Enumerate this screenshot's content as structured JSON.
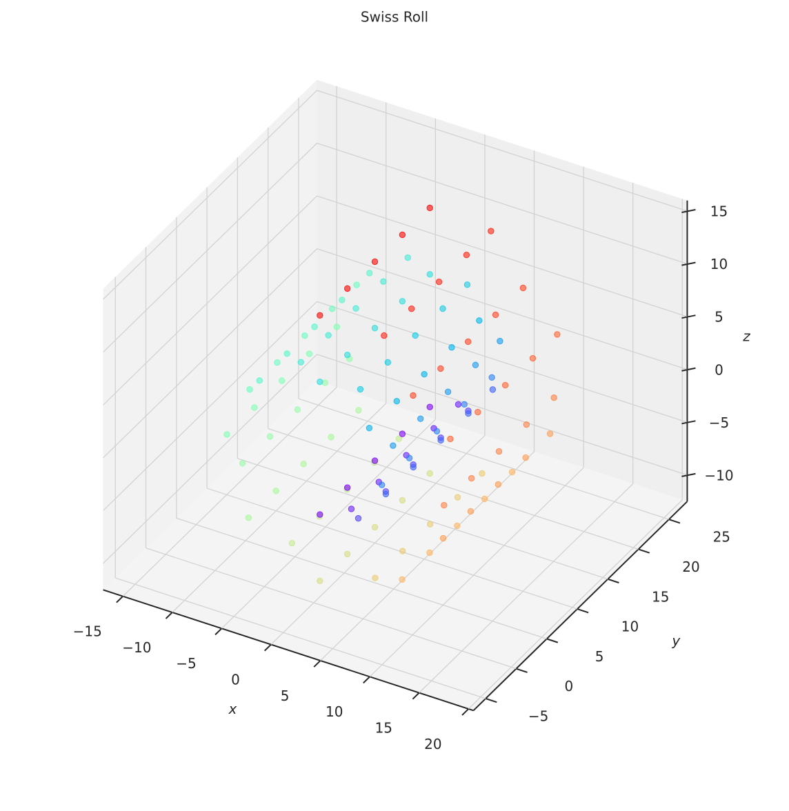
{
  "chart_data": {
    "type": "scatter3d",
    "title": "Swiss Roll",
    "xlabel": "x",
    "ylabel": "y",
    "zlabel": "z",
    "xlim": [
      -17,
      20.5
    ],
    "ylim": [
      -7,
      28
    ],
    "zlim": [
      -12.5,
      16
    ],
    "xticks": [
      {
        "value": -15,
        "label": "−15"
      },
      {
        "value": -10,
        "label": "−10"
      },
      {
        "value": -5,
        "label": "−5"
      },
      0,
      5,
      10,
      15,
      20
    ],
    "yticks": [
      {
        "value": -5,
        "label": "−5"
      },
      0,
      5,
      10,
      15,
      20,
      25
    ],
    "zticks": [
      {
        "value": -10,
        "label": "−10"
      },
      {
        "value": -5,
        "label": "−5"
      },
      0,
      5,
      10,
      15
    ],
    "grid": true,
    "series": [
      {
        "color": "#8000ff",
        "x": [
          0,
          0,
          0,
          0,
          0
        ],
        "y": [
          1,
          5.5,
          10,
          14.5,
          19
        ],
        "z": [
          -4.71,
          -4.71,
          -4.71,
          -4.71,
          -4.71
        ]
      },
      {
        "color": "#6a21fe",
        "x": [
          1.95,
          1.95,
          1.95,
          1.95,
          1.95
        ],
        "y": [
          3,
          7.5,
          12,
          16.5,
          20.5
        ],
        "z": [
          -4.72,
          -4.72,
          -4.72,
          -4.72,
          -4.72
        ]
      },
      {
        "color": "#5542fd",
        "x": [
          3.89,
          3.89,
          3.89,
          3.89,
          3.89
        ],
        "y": [
          1,
          5.5,
          10,
          14.5,
          19
        ],
        "z": [
          -3.89,
          -3.89,
          -3.89,
          -3.89,
          -3.89
        ]
      },
      {
        "color": "#4062fa",
        "x": [
          5.44,
          5.44,
          5.44,
          5.44,
          5.44
        ],
        "y": [
          3,
          7.5,
          12,
          16.5,
          20.5
        ],
        "z": [
          -2.25,
          -2.25,
          -2.25,
          -2.25,
          -2.25
        ]
      },
      {
        "color": "#2a80f6",
        "x": [
          6.28,
          6.28,
          6.28,
          6.28,
          6.28
        ],
        "y": [
          1,
          5.5,
          10,
          14.5,
          19
        ],
        "z": [
          0,
          0,
          0,
          0,
          0
        ]
      },
      {
        "color": "#159bf1",
        "x": [
          6.17,
          6.17,
          6.17,
          6.17,
          6.17
        ],
        "y": [
          3,
          7.5,
          12,
          16.5,
          20.5
        ],
        "z": [
          2.56,
          2.56,
          2.56,
          2.56,
          2.56
        ]
      },
      {
        "color": "#00b4eb",
        "x": [
          5,
          5,
          5,
          5,
          5
        ],
        "y": [
          1,
          5.5,
          10,
          14.5,
          19
        ],
        "z": [
          5,
          5,
          5,
          5,
          5
        ]
      },
      {
        "color": "#15cae5",
        "x": [
          2.86,
          2.86,
          2.86,
          2.86,
          2.86
        ],
        "y": [
          3,
          7.5,
          12,
          16.5,
          20.5
        ],
        "z": [
          6.89,
          6.89,
          6.89,
          6.89,
          6.89
        ]
      },
      {
        "color": "#2addde",
        "x": [
          0,
          0,
          0,
          0,
          0
        ],
        "y": [
          1,
          5.5,
          10,
          14.5,
          19
        ],
        "z": [
          7.85,
          7.85,
          7.85,
          7.85,
          7.85
        ]
      },
      {
        "color": "#40ebd4",
        "x": [
          -3.16,
          -3.16,
          -3.16,
          -3.16,
          -3.16
        ],
        "y": [
          3,
          7.5,
          12,
          16.5,
          20.5
        ],
        "z": [
          7.62,
          7.62,
          7.62,
          7.62,
          7.62
        ]
      },
      {
        "color": "#55f6ca",
        "x": [
          -6.11,
          -6.11,
          -6.11,
          -6.11,
          -6.11
        ],
        "y": [
          1,
          5.5,
          10,
          14.5,
          19
        ],
        "z": [
          6.11,
          6.11,
          6.11,
          6.11,
          6.11
        ]
      },
      {
        "color": "#6afcc0",
        "x": [
          -8.34,
          -8.34,
          -8.34,
          -8.34,
          -8.34
        ],
        "y": [
          3,
          7.5,
          12,
          16.5,
          20.5
        ],
        "z": [
          3.46,
          3.46,
          3.46,
          3.46,
          3.46
        ]
      },
      {
        "color": "#80ffb4",
        "x": [
          -9.42,
          -9.42,
          -9.42,
          -9.42,
          -9.42
        ],
        "y": [
          1,
          5.5,
          10,
          14.5,
          19
        ],
        "z": [
          0,
          0,
          0,
          0,
          0
        ]
      },
      {
        "color": "#95fca8",
        "x": [
          -9.07,
          -9.07,
          -9.07,
          -9.07,
          -9.07
        ],
        "y": [
          3,
          7.5,
          12,
          16.5,
          20.5
        ],
        "z": [
          -3.76,
          -3.76,
          -3.76,
          -3.76,
          -3.76
        ]
      },
      {
        "color": "#aaf69b",
        "x": [
          -7.22,
          -7.22,
          -7.22,
          -7.22,
          -7.22
        ],
        "y": [
          1,
          5.5,
          10,
          14.5,
          19
        ],
        "z": [
          -7.22,
          -7.22,
          -7.22,
          -7.22,
          -7.22
        ]
      },
      {
        "color": "#bfeb8e",
        "x": [
          -4.06,
          -4.06,
          -4.06,
          -4.06,
          -4.06
        ],
        "y": [
          3,
          7.5,
          12,
          16.5,
          20.5
        ],
        "z": [
          -9.8,
          -9.8,
          -9.8,
          -9.8,
          -9.8
        ]
      },
      {
        "color": "#d4dd80",
        "x": [
          0,
          0,
          0,
          0,
          0
        ],
        "y": [
          1,
          5.5,
          10,
          14.5,
          19
        ],
        "z": [
          -11,
          -11,
          -11,
          -11,
          -11
        ]
      },
      {
        "color": "#eaca71",
        "x": [
          4.36,
          4.36,
          4.36,
          4.36,
          4.36
        ],
        "y": [
          3,
          7.5,
          12,
          16.5,
          20.5
        ],
        "z": [
          -10.52,
          -10.52,
          -10.52,
          -10.52,
          -10.52
        ]
      },
      {
        "color": "#ffb462",
        "x": [
          8.33,
          8.33,
          8.33,
          8.33,
          8.33
        ],
        "y": [
          1,
          5.5,
          10,
          14.5,
          19
        ],
        "z": [
          -8.33,
          -8.33,
          -8.33,
          -8.33,
          -8.33
        ]
      },
      {
        "color": "#ff9b52",
        "x": [
          11.25,
          11.25,
          11.25,
          11.25,
          11.25
        ],
        "y": [
          3,
          7.5,
          12,
          16.5,
          20.5
        ],
        "z": [
          -4.66,
          -4.66,
          -4.66,
          -4.66,
          -4.66
        ]
      },
      {
        "color": "#ff8042",
        "x": [
          12.57,
          12.57,
          12.57,
          12.57,
          12.57
        ],
        "y": [
          1,
          5.5,
          10,
          14.5,
          19
        ],
        "z": [
          0,
          0,
          0,
          0,
          0
        ]
      },
      {
        "color": "#ff6232",
        "x": [
          11.97,
          11.97,
          11.97,
          11.97,
          11.97
        ],
        "y": [
          3,
          7.5,
          12,
          16.5,
          20.5
        ],
        "z": [
          4.96,
          4.96,
          4.96,
          4.96,
          4.96
        ]
      },
      {
        "color": "#ff4221",
        "x": [
          9.44,
          9.44,
          9.44,
          9.44,
          9.44
        ],
        "y": [
          1,
          5.5,
          10,
          14.5,
          19
        ],
        "z": [
          9.44,
          9.44,
          9.44,
          9.44,
          9.44
        ]
      },
      {
        "color": "#ff2111",
        "x": [
          5.26,
          5.26,
          5.26,
          5.26,
          5.26
        ],
        "y": [
          3,
          7.5,
          12,
          16.5,
          20.5
        ],
        "z": [
          12.7,
          12.7,
          12.7,
          12.7,
          12.7
        ]
      },
      {
        "color": "#ff0000",
        "x": [
          0,
          0,
          0,
          0,
          0
        ],
        "y": [
          1,
          5.5,
          10,
          14.5,
          19
        ],
        "z": [
          14.14,
          14.14,
          14.14,
          14.14,
          14.14
        ]
      }
    ]
  }
}
